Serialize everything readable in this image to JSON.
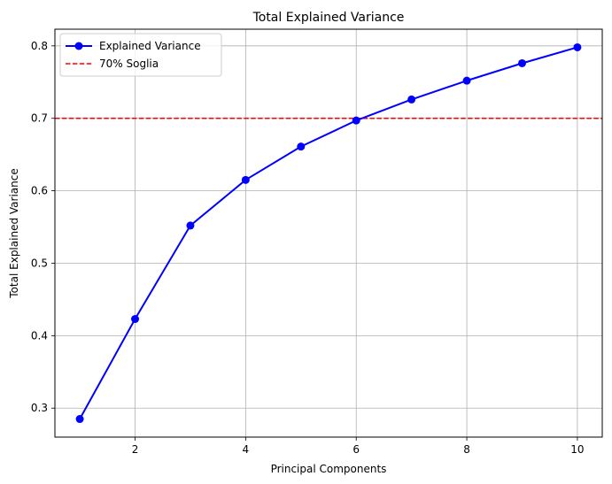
{
  "chart_data": {
    "type": "line",
    "title": "Total Explained Variance",
    "xlabel": "Principal Components",
    "ylabel": "Total Explained Variance",
    "x": [
      1,
      2,
      3,
      4,
      5,
      6,
      7,
      8,
      9,
      10
    ],
    "series": [
      {
        "name": "Explained Variance",
        "values": [
          0.285,
          0.423,
          0.552,
          0.615,
          0.661,
          0.697,
          0.726,
          0.752,
          0.776,
          0.798
        ],
        "color": "#0000ff",
        "marker": "circle"
      }
    ],
    "threshold": {
      "name": "70% Soglia",
      "value": 0.7,
      "color": "#ff0000",
      "style": "dashed"
    },
    "xlim": [
      0.55,
      10.45
    ],
    "ylim": [
      0.26,
      0.823
    ],
    "xticks": [
      2,
      4,
      6,
      8,
      10
    ],
    "yticks": [
      0.3,
      0.4,
      0.5,
      0.6,
      0.7,
      0.8
    ],
    "xtick_labels": [
      "2",
      "4",
      "6",
      "8",
      "10"
    ],
    "ytick_labels": [
      "0.3",
      "0.4",
      "0.5",
      "0.6",
      "0.7",
      "0.8"
    ],
    "grid": true,
    "legend_position": "top-left"
  }
}
